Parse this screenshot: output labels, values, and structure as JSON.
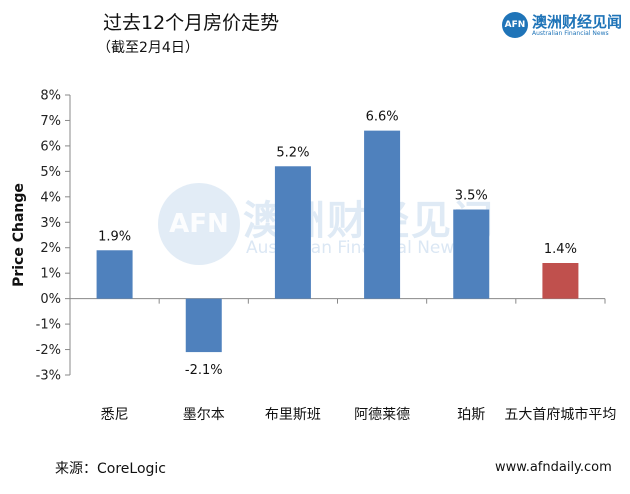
{
  "header": {
    "title": "过去12个月房价走势",
    "subtitle": "（截至2月4日）"
  },
  "logo": {
    "icon_text": "AFN",
    "name": "澳洲财经见闻",
    "tagline": "Australian Financial News"
  },
  "watermark": {
    "icon_text": "AFN",
    "name": "澳洲财经见闻",
    "tagline": "Australian Financial News"
  },
  "footer": {
    "source": "来源：CoreLogic",
    "site": "www.afndaily.com"
  },
  "colors": {
    "bar_default": "#4f81bd",
    "bar_highlight": "#c0504d",
    "axis": "#888888"
  },
  "chart_data": {
    "type": "bar",
    "title": "",
    "xlabel": "",
    "ylabel": "Price Change",
    "ylim": [
      -3,
      8
    ],
    "yticks": [
      "-3%",
      "-2%",
      "-1%",
      "0%",
      "1%",
      "2%",
      "3%",
      "4%",
      "5%",
      "6%",
      "7%",
      "8%"
    ],
    "grid": false,
    "categories": [
      "悉尼",
      "墨尔本",
      "布里斯班",
      "阿德莱德",
      "珀斯",
      "五大首府城市平均"
    ],
    "values": [
      1.9,
      -2.1,
      5.2,
      6.6,
      3.5,
      1.4
    ],
    "data_labels": [
      "1.9%",
      "-2.1%",
      "5.2%",
      "6.6%",
      "3.5%",
      "1.4%"
    ],
    "highlight_index": 5
  }
}
